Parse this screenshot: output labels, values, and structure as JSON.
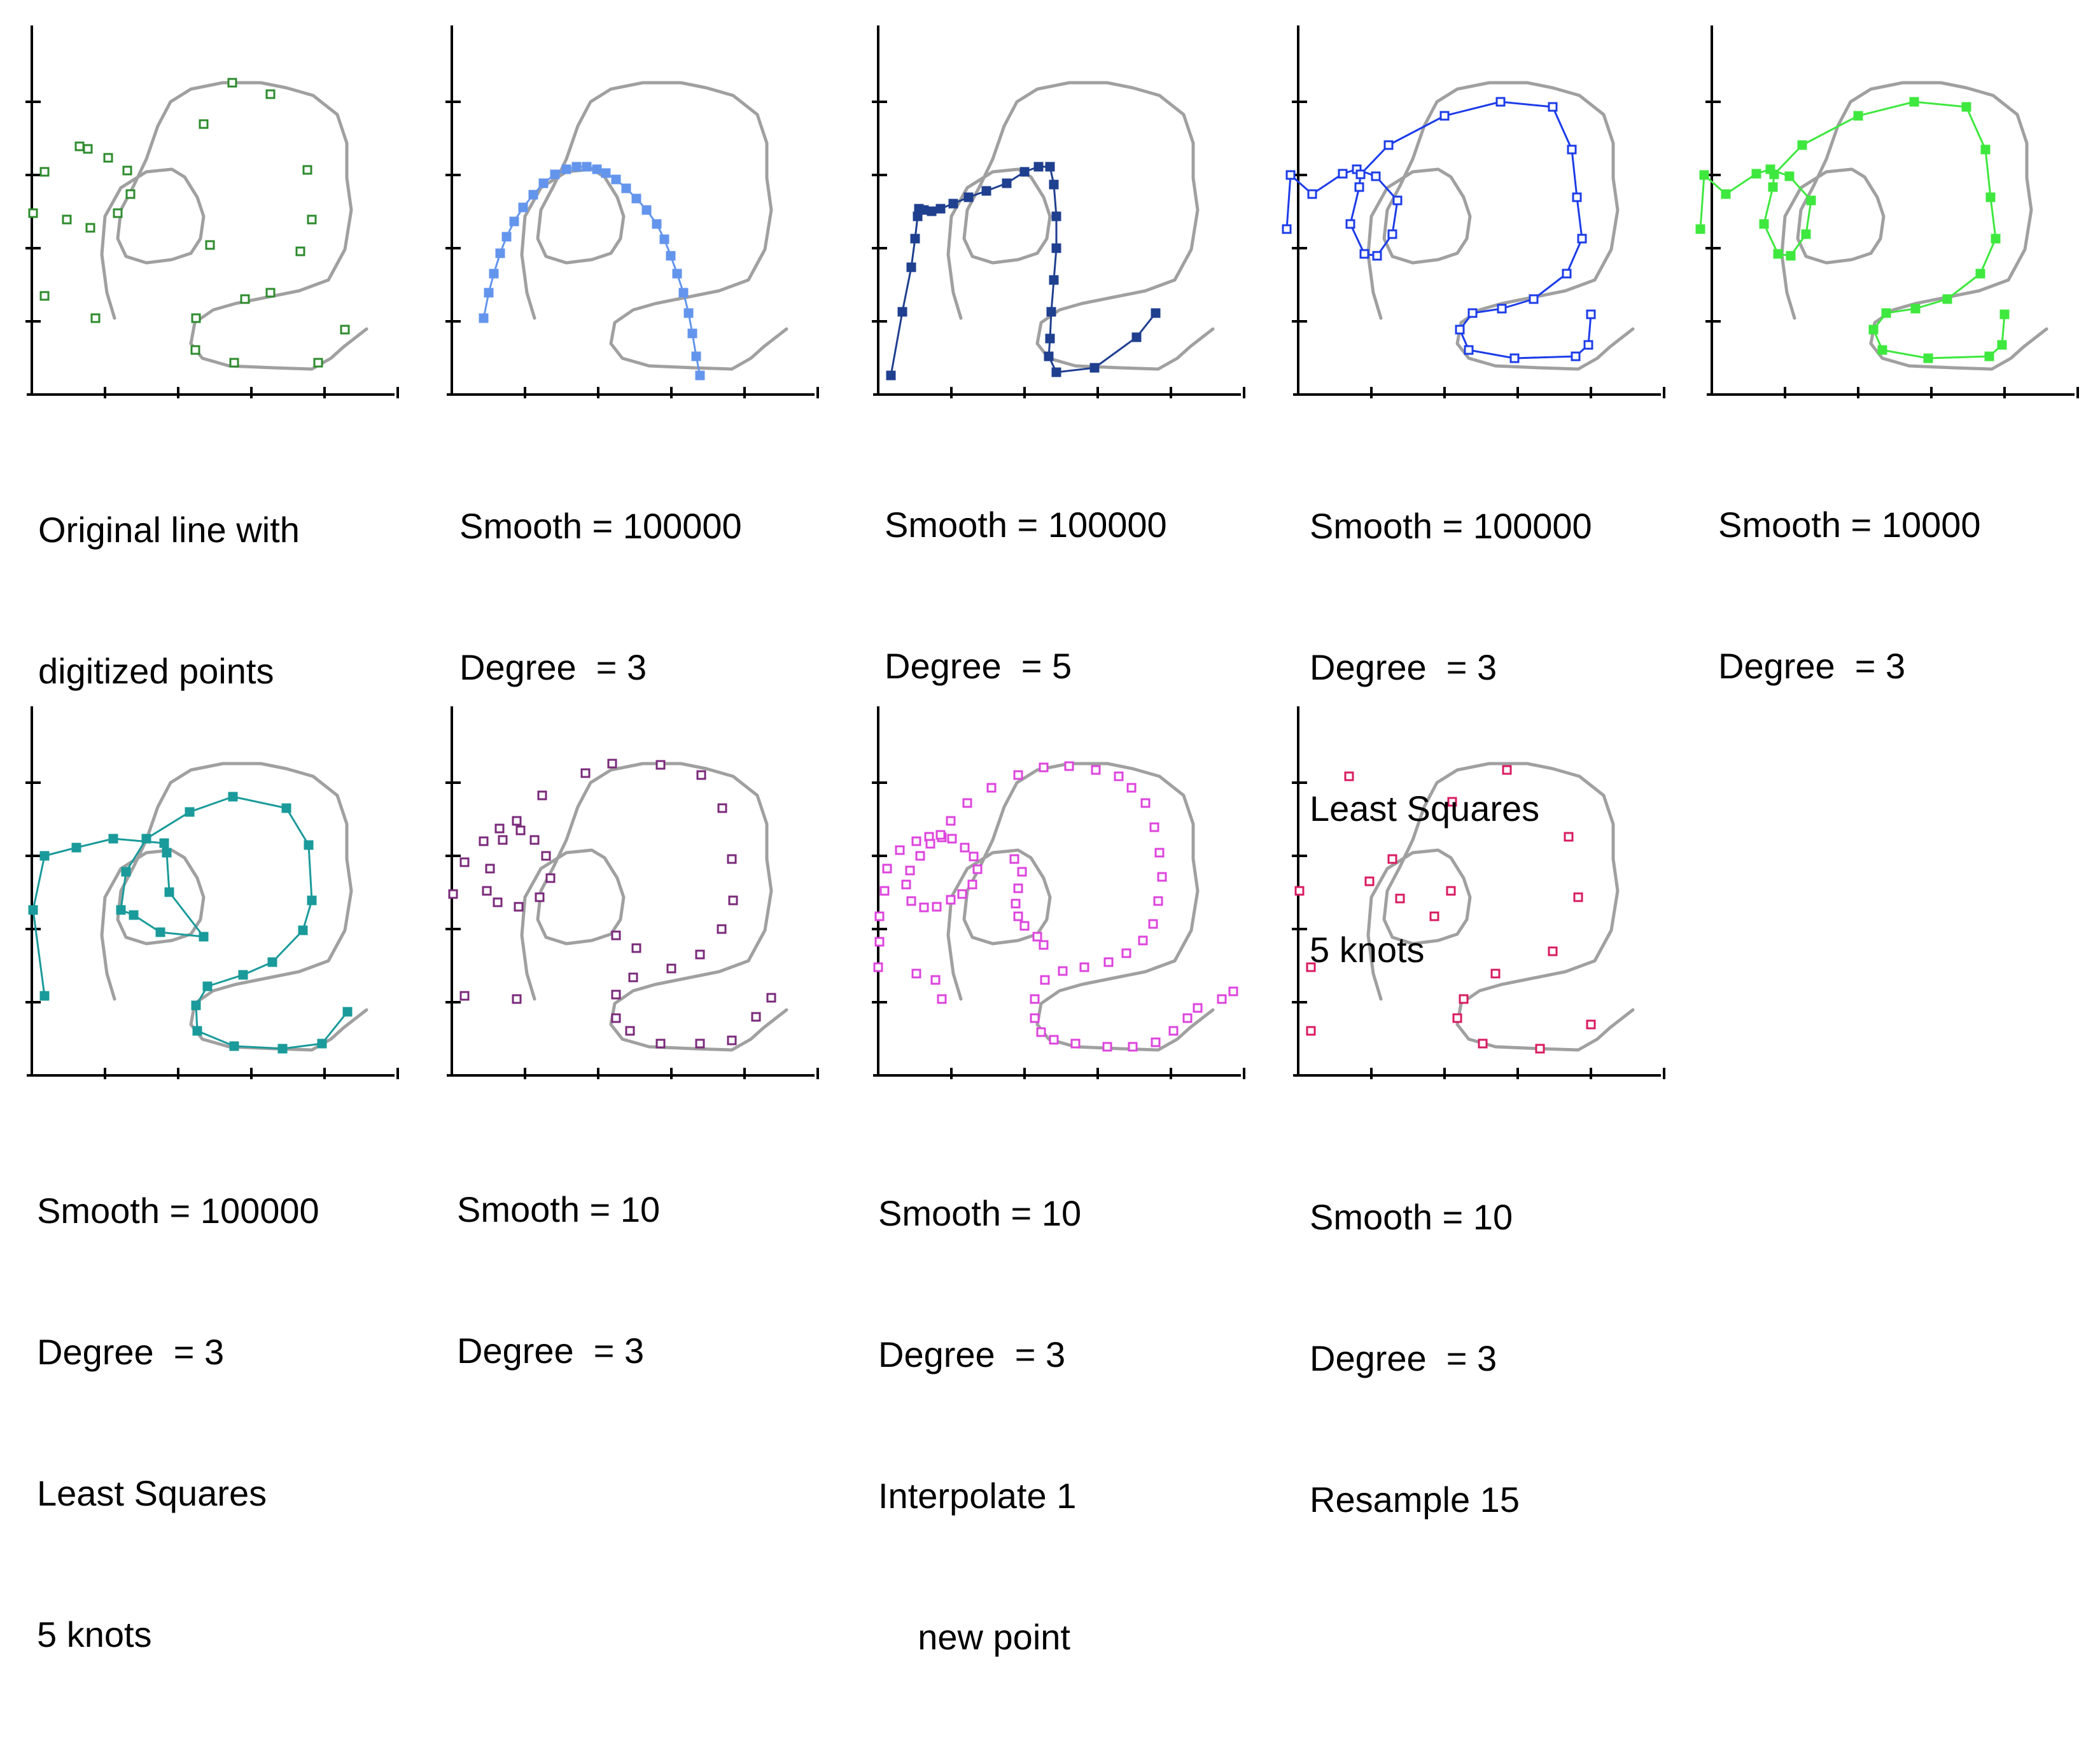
{
  "colors": {
    "axis": "#000000",
    "original_line": "#a0a0a0"
  },
  "panels": [
    {
      "id": "original",
      "caption": [
        "Original line with",
        "digitized points"
      ],
      "point_color": "#2e8b2e",
      "filled": false,
      "connect": false,
      "points": "orig"
    },
    {
      "id": "smooth-100000-deg3",
      "caption": [
        "Smooth = 100000",
        "Degree  = 3"
      ],
      "point_color": "#6495ed",
      "filled": true,
      "connect": true,
      "points": "arch"
    },
    {
      "id": "smooth-100000-deg5",
      "caption": [
        "Smooth = 100000",
        "Degree  = 5"
      ],
      "point_color": "#1f3f8f",
      "filled": true,
      "connect": true,
      "points": "zigzag"
    },
    {
      "id": "smooth-100000-ls",
      "caption": [
        "Smooth = 100000",
        "Degree  = 3",
        "Least Squares",
        "5 knots"
      ],
      "point_color": "#1c3ce8",
      "filled": false,
      "connect": true,
      "points": "ls"
    },
    {
      "id": "smooth-10000",
      "caption": [
        "Smooth = 10000",
        "Degree  = 3"
      ],
      "point_color": "#3ee83e",
      "filled": true,
      "connect": true,
      "points": "ls"
    },
    {
      "id": "smooth-100000-ls-teal",
      "caption": [
        "Smooth = 100000",
        "Degree  = 3",
        "Least Squares",
        "5 knots"
      ],
      "point_color": "#1a9a9a",
      "filled": true,
      "connect": true,
      "points": "teal"
    },
    {
      "id": "smooth-10",
      "caption": [
        "Smooth = 10",
        "Degree  = 3"
      ],
      "point_color": "#7a2a7a",
      "filled": false,
      "connect": false,
      "points": "dense"
    },
    {
      "id": "smooth-10-interp",
      "caption": [
        "Smooth = 10",
        "Degree  = 3",
        "Interpolate 1",
        "    new point"
      ],
      "point_color": "#dd44dd",
      "filled": false,
      "connect": false,
      "points": "denser"
    },
    {
      "id": "smooth-10-resample",
      "caption": [
        "Smooth = 10",
        "Degree  = 3",
        "Resample 15"
      ],
      "point_color": "#d81b60",
      "filled": false,
      "connect": false,
      "points": "resample"
    }
  ]
}
